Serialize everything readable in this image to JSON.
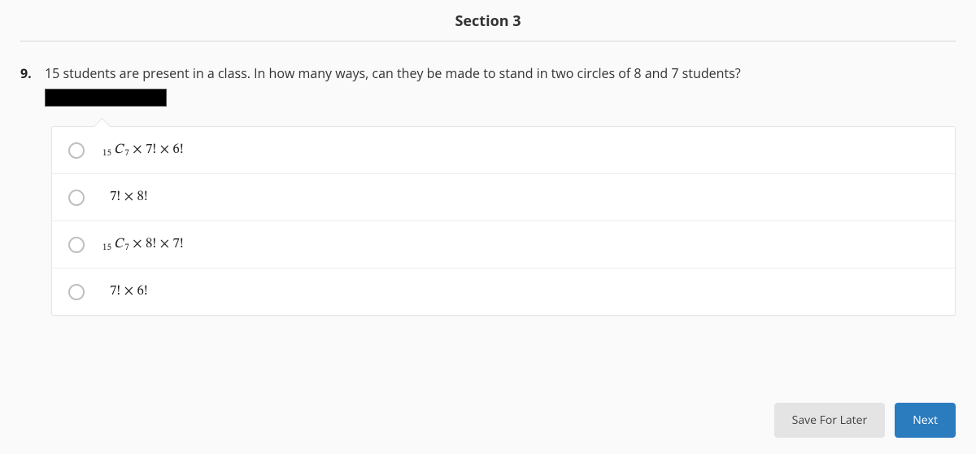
{
  "section_title": "Section 3",
  "question": {
    "number": "9.",
    "text": "15 students are present in a class. In how many ways, can they be made to stand in two circles of 8 and 7 students?"
  },
  "options": [
    {
      "pre": "15",
      "sym": "C",
      "post": "7",
      "tail": " × 7! × 6!"
    },
    {
      "pre": "",
      "sym": "",
      "post": "",
      "tail": "7! × 8!"
    },
    {
      "pre": "15",
      "sym": "C",
      "post": "7",
      "tail": " × 8! × 7!"
    },
    {
      "pre": "",
      "sym": "",
      "post": "",
      "tail": "7! × 6!"
    }
  ],
  "buttons": {
    "save": "Save For Later",
    "next": "Next"
  },
  "colors": {
    "page_bg": "#fafafa",
    "card_bg": "#ffffff",
    "border": "#e5e5e5",
    "divider": "#eeeeee",
    "radio_border": "#bfbfbf",
    "text": "#333333",
    "btn_secondary_bg": "#e4e4e4",
    "btn_secondary_text": "#444444",
    "btn_primary_bg": "#2b7bbf",
    "btn_primary_text": "#ffffff",
    "hr": "#d8d8d8"
  }
}
